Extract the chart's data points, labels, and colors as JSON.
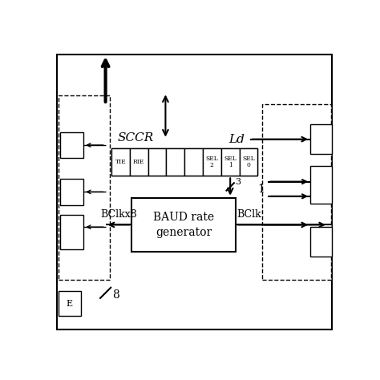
{
  "bg_color": "#ffffff",
  "line_color": "#000000",
  "fig_width": 4.74,
  "fig_height": 4.74,
  "dpi": 100,
  "sccr_label": "SCCR",
  "baud_label": "BAUD rate\ngenerator",
  "bclkx8_label": "BClkx8",
  "bclk_label": "BClk",
  "ld_label": "Ld",
  "bus8_label": "8",
  "one_label": "1",
  "slash3_label": "3",
  "e_label": "E"
}
